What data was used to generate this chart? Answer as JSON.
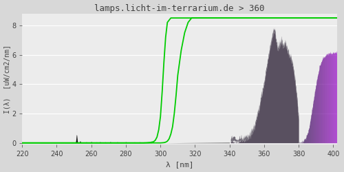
{
  "title": "lamps.licht-im-terrarium.de > 360",
  "xlabel": "λ [nm]",
  "ylabel": "I(λ)  [uW/cm2/nm]",
  "xlim": [
    220,
    402
  ],
  "ylim": [
    -0.1,
    8.8
  ],
  "yticks": [
    0,
    2,
    4,
    6,
    8
  ],
  "xticks": [
    220,
    240,
    260,
    280,
    300,
    320,
    340,
    360,
    380,
    400
  ],
  "bg_color": "#d8d8d8",
  "plot_bg_color": "#ececec",
  "grid_color": "#ffffff",
  "title_color": "#404040",
  "tick_color": "#404040",
  "font_family": "monospace",
  "green_line_color": "#00cc00",
  "green_linewidth": 1.3,
  "gc1_x": [
    220,
    287,
    290,
    292,
    294,
    296,
    297,
    298,
    299,
    300,
    301,
    302,
    303,
    304,
    306,
    310,
    350,
    402
  ],
  "gc1_y": [
    0.0,
    0.0,
    0.0,
    0.01,
    0.03,
    0.08,
    0.18,
    0.4,
    0.9,
    1.8,
    3.5,
    5.5,
    7.2,
    8.2,
    8.5,
    8.5,
    8.5,
    8.5
  ],
  "gc2_x": [
    220,
    295,
    298,
    300,
    302,
    303,
    304,
    305,
    306,
    307,
    308,
    309,
    310,
    312,
    314,
    316,
    318,
    320,
    350,
    402
  ],
  "gc2_y": [
    0.0,
    0.0,
    0.0,
    0.0,
    0.02,
    0.05,
    0.12,
    0.28,
    0.6,
    1.1,
    2.0,
    3.2,
    4.6,
    6.3,
    7.5,
    8.2,
    8.5,
    8.5,
    8.5,
    8.5
  ],
  "spike_centers": [
    251.5,
    253.5,
    257,
    260,
    263,
    265,
    268,
    271,
    275,
    280,
    285,
    288,
    290
  ],
  "spike_heights": [
    0.55,
    0.12,
    0.06,
    0.07,
    0.05,
    0.06,
    0.05,
    0.07,
    0.06,
    0.06,
    0.05,
    0.06,
    0.05
  ],
  "uva_peak_x": [
    340,
    345,
    348,
    350,
    352,
    354,
    355,
    356,
    357,
    358,
    359,
    360,
    361,
    362,
    363,
    364,
    365,
    366,
    367,
    368,
    369,
    370,
    371,
    372,
    373,
    374,
    375,
    376,
    377,
    378,
    379,
    380
  ],
  "uva_peak_y": [
    0.03,
    0.08,
    0.15,
    0.25,
    0.5,
    0.9,
    1.3,
    1.8,
    2.3,
    2.9,
    3.4,
    4.0,
    4.8,
    5.5,
    6.2,
    6.8,
    7.4,
    7.55,
    6.8,
    6.3,
    6.6,
    6.9,
    6.5,
    6.7,
    6.4,
    6.0,
    5.8,
    5.5,
    4.8,
    4.0,
    2.8,
    1.5
  ],
  "vis_peak_x": [
    380,
    382,
    384,
    386,
    388,
    390,
    392,
    394,
    396,
    398,
    400,
    402
  ],
  "vis_peak_y": [
    0.0,
    0.05,
    0.3,
    1.0,
    2.5,
    4.0,
    5.2,
    5.8,
    6.0,
    6.1,
    6.1,
    6.2
  ]
}
